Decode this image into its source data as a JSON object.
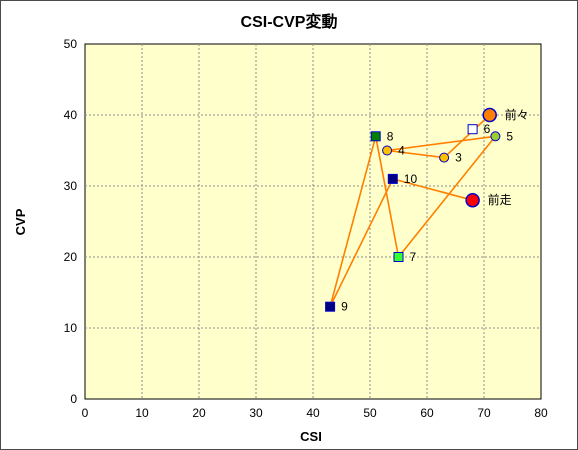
{
  "chart_data": {
    "type": "scatter",
    "title": "CSI-CVP変動",
    "xlabel": "CSI",
    "ylabel": "CVP",
    "xlim": [
      0,
      80
    ],
    "ylim": [
      0,
      50
    ],
    "x_ticks": [
      0,
      10,
      20,
      30,
      40,
      50,
      60,
      70,
      80
    ],
    "y_ticks": [
      0,
      10,
      20,
      30,
      40,
      50
    ],
    "grid": true,
    "legend": "none",
    "colors": {
      "plot_bg": "#ffffcc",
      "grid": "#8c8c8c",
      "line": "#ff7f00",
      "page_bg": "#ffffff"
    },
    "points": [
      {
        "label": "前走",
        "x": 68,
        "y": 28,
        "marker": "circle",
        "size": "large",
        "fill": "#ff0000",
        "stroke": "#0000cc"
      },
      {
        "label": "前々",
        "x": 71,
        "y": 40,
        "marker": "circle",
        "size": "large",
        "fill": "#ff7f00",
        "stroke": "#0000cc"
      },
      {
        "label": "3",
        "x": 63,
        "y": 34,
        "marker": "circle",
        "size": "small",
        "fill": "#ffc000",
        "stroke": "#0000cc"
      },
      {
        "label": "4",
        "x": 53,
        "y": 35,
        "marker": "circle",
        "size": "small",
        "fill": "#ffc000",
        "stroke": "#0000cc"
      },
      {
        "label": "5",
        "x": 72,
        "y": 37,
        "marker": "circle",
        "size": "small",
        "fill": "#9acd32",
        "stroke": "#0000cc"
      },
      {
        "label": "6",
        "x": 68,
        "y": 38,
        "marker": "square",
        "size": "small",
        "fill": "#ffffff",
        "stroke": "#0000cc"
      },
      {
        "label": "7",
        "x": 55,
        "y": 20,
        "marker": "square",
        "size": "small",
        "fill": "#33ff33",
        "stroke": "#0000cc"
      },
      {
        "label": "8",
        "x": 51,
        "y": 37,
        "marker": "square",
        "size": "small",
        "fill": "#008000",
        "stroke": "#0000cc"
      },
      {
        "label": "9",
        "x": 43,
        "y": 13,
        "marker": "square",
        "size": "small",
        "fill": "#000080",
        "stroke": "#0000cc"
      },
      {
        "label": "10",
        "x": 54,
        "y": 31,
        "marker": "square",
        "size": "small",
        "fill": "#000080",
        "stroke": "#0000cc"
      }
    ],
    "path_order": [
      "前々",
      "3",
      "4",
      "5",
      "7",
      "8",
      "9",
      "10",
      "前走"
    ]
  }
}
